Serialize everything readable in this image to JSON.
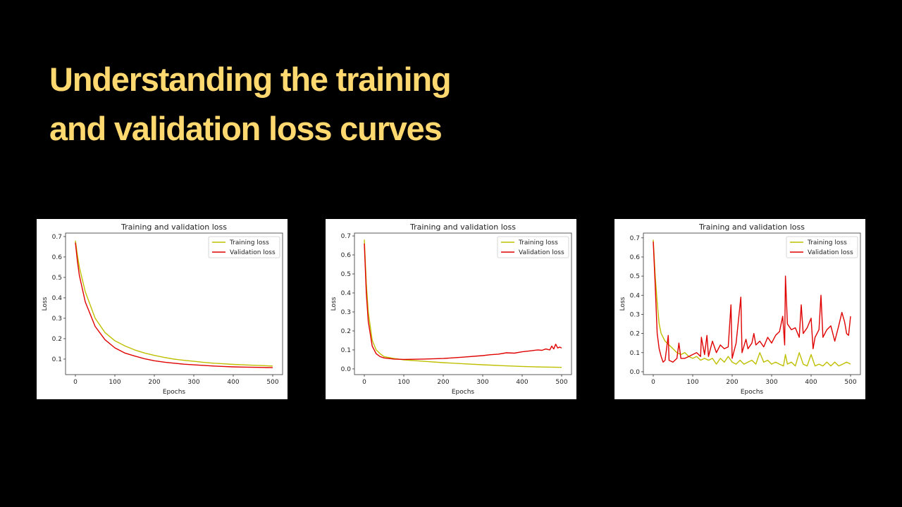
{
  "slide": {
    "title_lines": [
      "Understanding the training",
      "and validation loss curves"
    ],
    "title_color": "#FFD970",
    "background": "#000000"
  },
  "chart_data": [
    {
      "type": "line",
      "title": "Training and validation loss",
      "xlabel": "Epochs",
      "ylabel": "Loss",
      "xlim": [
        -25,
        525
      ],
      "ylim": [
        0.024,
        0.717
      ],
      "xticks": [
        0,
        100,
        200,
        300,
        400,
        500
      ],
      "yticks": [
        0.1,
        0.2,
        0.3,
        0.4,
        0.5,
        0.6,
        0.7
      ],
      "grid": false,
      "legend_position": "upper-right",
      "series": [
        {
          "name": "Training loss",
          "color": "#BFBF00",
          "x": [
            0,
            5,
            10,
            25,
            50,
            75,
            100,
            125,
            150,
            175,
            200,
            225,
            250,
            275,
            300,
            325,
            350,
            375,
            400,
            425,
            450,
            475,
            500
          ],
          "y": [
            0.68,
            0.61,
            0.55,
            0.43,
            0.3,
            0.23,
            0.19,
            0.165,
            0.145,
            0.13,
            0.118,
            0.108,
            0.1,
            0.094,
            0.089,
            0.084,
            0.08,
            0.077,
            0.074,
            0.072,
            0.07,
            0.068,
            0.066
          ]
        },
        {
          "name": "Validation loss",
          "color": "#E00000",
          "x": [
            0,
            5,
            10,
            25,
            50,
            75,
            100,
            125,
            150,
            175,
            200,
            225,
            250,
            275,
            300,
            325,
            350,
            375,
            400,
            425,
            450,
            475,
            500
          ],
          "y": [
            0.67,
            0.58,
            0.51,
            0.38,
            0.26,
            0.195,
            0.155,
            0.13,
            0.115,
            0.102,
            0.092,
            0.085,
            0.08,
            0.075,
            0.072,
            0.069,
            0.066,
            0.064,
            0.062,
            0.061,
            0.06,
            0.059,
            0.058
          ]
        }
      ]
    },
    {
      "type": "line",
      "title": "Training and validation loss",
      "xlabel": "Epochs",
      "ylabel": "Loss",
      "xlim": [
        -25,
        525
      ],
      "ylim": [
        -0.03,
        0.715
      ],
      "xticks": [
        0,
        100,
        200,
        300,
        400,
        500
      ],
      "yticks": [
        0.0,
        0.1,
        0.2,
        0.3,
        0.4,
        0.5,
        0.6,
        0.7
      ],
      "grid": false,
      "legend_position": "upper-right",
      "series": [
        {
          "name": "Training loss",
          "color": "#BFBF00",
          "x": [
            0,
            5,
            10,
            20,
            30,
            40,
            50,
            75,
            100,
            150,
            200,
            250,
            300,
            350,
            400,
            450,
            500
          ],
          "y": [
            0.68,
            0.45,
            0.3,
            0.15,
            0.1,
            0.08,
            0.065,
            0.055,
            0.048,
            0.04,
            0.033,
            0.027,
            0.022,
            0.017,
            0.013,
            0.01,
            0.008
          ]
        },
        {
          "name": "Validation loss",
          "color": "#E00000",
          "x": [
            0,
            5,
            10,
            20,
            30,
            40,
            50,
            75,
            100,
            150,
            200,
            250,
            300,
            320,
            340,
            360,
            380,
            400,
            420,
            440,
            450,
            460,
            470,
            475,
            480,
            485,
            490,
            495,
            500
          ],
          "y": [
            0.66,
            0.4,
            0.25,
            0.12,
            0.08,
            0.065,
            0.058,
            0.052,
            0.05,
            0.052,
            0.055,
            0.062,
            0.07,
            0.075,
            0.078,
            0.085,
            0.083,
            0.09,
            0.095,
            0.1,
            0.098,
            0.105,
            0.1,
            0.12,
            0.105,
            0.13,
            0.11,
            0.115,
            0.11
          ]
        }
      ]
    },
    {
      "type": "line",
      "title": "Training and validation loss",
      "xlabel": "Epochs",
      "ylabel": "Loss",
      "xlim": [
        -25,
        525
      ],
      "ylim": [
        -0.015,
        0.725
      ],
      "xticks": [
        0,
        100,
        200,
        300,
        400,
        500
      ],
      "yticks": [
        0.0,
        0.1,
        0.2,
        0.3,
        0.4,
        0.5,
        0.6,
        0.7
      ],
      "grid": false,
      "legend_position": "upper-right",
      "series": [
        {
          "name": "Training loss",
          "color": "#BFBF00",
          "x": [
            0,
            5,
            10,
            15,
            20,
            30,
            40,
            50,
            60,
            70,
            80,
            90,
            100,
            110,
            120,
            130,
            140,
            150,
            160,
            170,
            180,
            190,
            200,
            210,
            220,
            230,
            240,
            250,
            260,
            270,
            280,
            290,
            300,
            310,
            320,
            330,
            335,
            340,
            350,
            360,
            370,
            380,
            390,
            400,
            410,
            420,
            430,
            440,
            450,
            460,
            470,
            480,
            490,
            500
          ],
          "y": [
            0.69,
            0.5,
            0.36,
            0.25,
            0.2,
            0.16,
            0.14,
            0.12,
            0.1,
            0.09,
            0.1,
            0.08,
            0.07,
            0.08,
            0.06,
            0.07,
            0.06,
            0.07,
            0.04,
            0.07,
            0.05,
            0.08,
            0.05,
            0.04,
            0.06,
            0.04,
            0.05,
            0.06,
            0.04,
            0.1,
            0.05,
            0.06,
            0.04,
            0.05,
            0.04,
            0.03,
            0.09,
            0.04,
            0.05,
            0.03,
            0.1,
            0.04,
            0.03,
            0.09,
            0.03,
            0.04,
            0.03,
            0.05,
            0.03,
            0.05,
            0.03,
            0.04,
            0.05,
            0.04
          ]
        },
        {
          "name": "Validation loss",
          "color": "#E00000",
          "x": [
            0,
            5,
            10,
            15,
            20,
            25,
            30,
            38,
            40,
            50,
            60,
            65,
            70,
            80,
            90,
            100,
            110,
            120,
            122,
            130,
            136,
            140,
            150,
            160,
            170,
            180,
            190,
            197,
            200,
            210,
            222,
            225,
            235,
            240,
            250,
            255,
            260,
            270,
            280,
            290,
            300,
            310,
            320,
            328,
            333,
            335,
            340,
            350,
            360,
            370,
            375,
            380,
            390,
            400,
            405,
            410,
            420,
            425,
            430,
            440,
            450,
            460,
            470,
            478,
            485,
            490,
            495,
            500
          ],
          "y": [
            0.68,
            0.45,
            0.2,
            0.12,
            0.08,
            0.05,
            0.06,
            0.19,
            0.06,
            0.05,
            0.07,
            0.15,
            0.07,
            0.07,
            0.08,
            0.09,
            0.1,
            0.08,
            0.18,
            0.09,
            0.19,
            0.08,
            0.16,
            0.1,
            0.14,
            0.12,
            0.13,
            0.35,
            0.07,
            0.15,
            0.39,
            0.1,
            0.17,
            0.12,
            0.15,
            0.2,
            0.14,
            0.16,
            0.13,
            0.18,
            0.15,
            0.19,
            0.21,
            0.29,
            0.14,
            0.5,
            0.25,
            0.22,
            0.23,
            0.18,
            0.35,
            0.2,
            0.23,
            0.28,
            0.12,
            0.18,
            0.22,
            0.4,
            0.18,
            0.22,
            0.24,
            0.16,
            0.24,
            0.31,
            0.26,
            0.2,
            0.19,
            0.29
          ]
        }
      ]
    }
  ]
}
